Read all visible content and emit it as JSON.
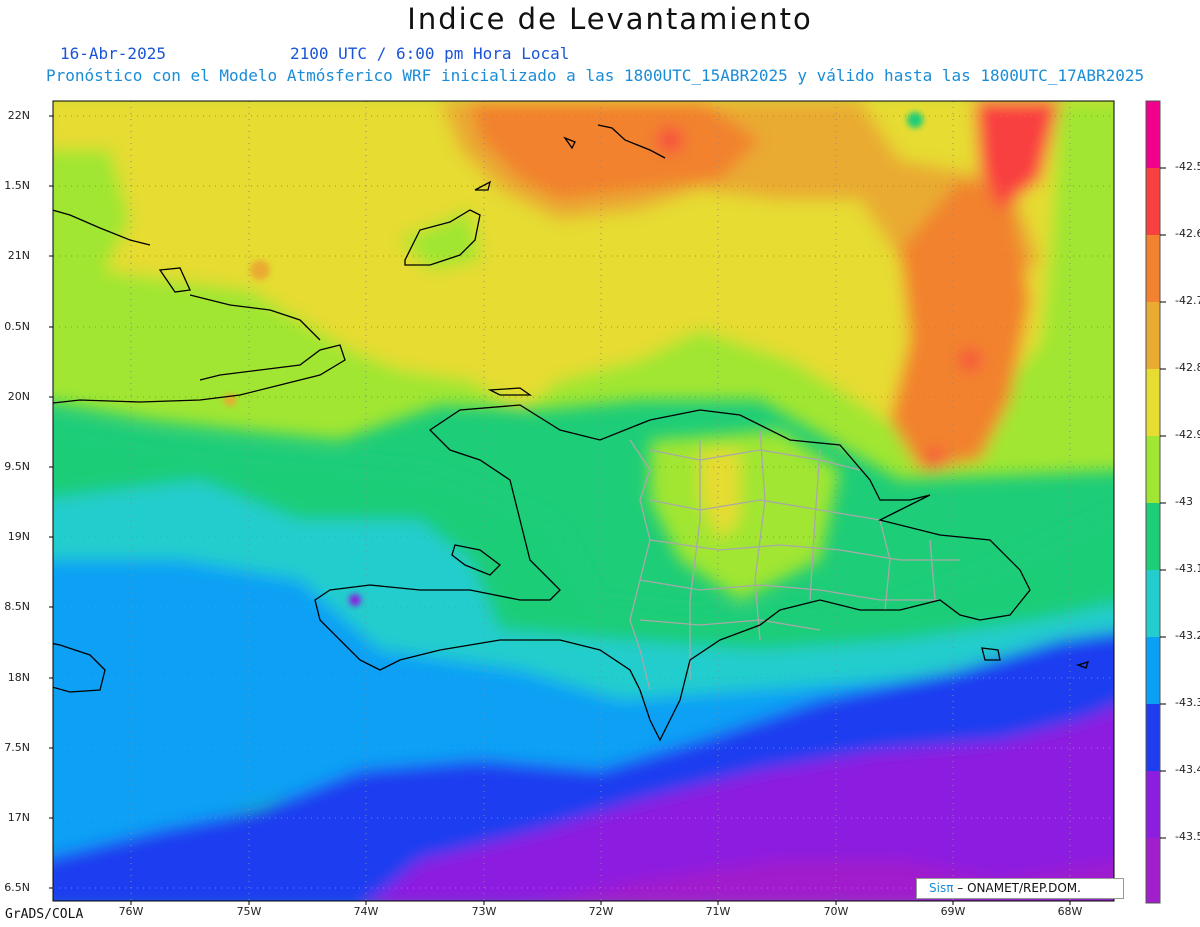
{
  "map": {
    "title": "Indice de Levantamiento",
    "date": "16-Abr-2025",
    "time": "2100 UTC / 6:00 pm Hora Local",
    "description": "Pronóstico con el Modelo Atmósferico WRF inicializado a las 1800UTC_15ABR2025 y válido hasta las  1800UTC_17ABR2025",
    "lat_labels": [
      "22N",
      "1.5N",
      "21N",
      "0.5N",
      "20N",
      "9.5N",
      "19N",
      "8.5N",
      "18N",
      "7.5N",
      "17N",
      "6.5N"
    ],
    "lon_labels": [
      "76W",
      "75W",
      "74W",
      "73W",
      "72W",
      "71W",
      "70W",
      "69W",
      "68W"
    ],
    "footer": "GrADS/COLA",
    "credit_brand": "Sisπ",
    "credit_org": "– ONAMET/REP.DOM."
  },
  "colorbar": {
    "labels": [
      "-42.5",
      "-42.6",
      "-42.7",
      "-42.8",
      "-42.9",
      "-43",
      "-43.1",
      "-43.2",
      "-43.3",
      "-43.4",
      "-43.5"
    ],
    "colors": [
      "#f0008c",
      "#f94040",
      "#f2822f",
      "#e9ab32",
      "#e6dc32",
      "#a0e632",
      "#1ecd78",
      "#23cdcd",
      "#0aa0f5",
      "#1e3cf0",
      "#8c1ee0",
      "#a01ecc"
    ]
  }
}
